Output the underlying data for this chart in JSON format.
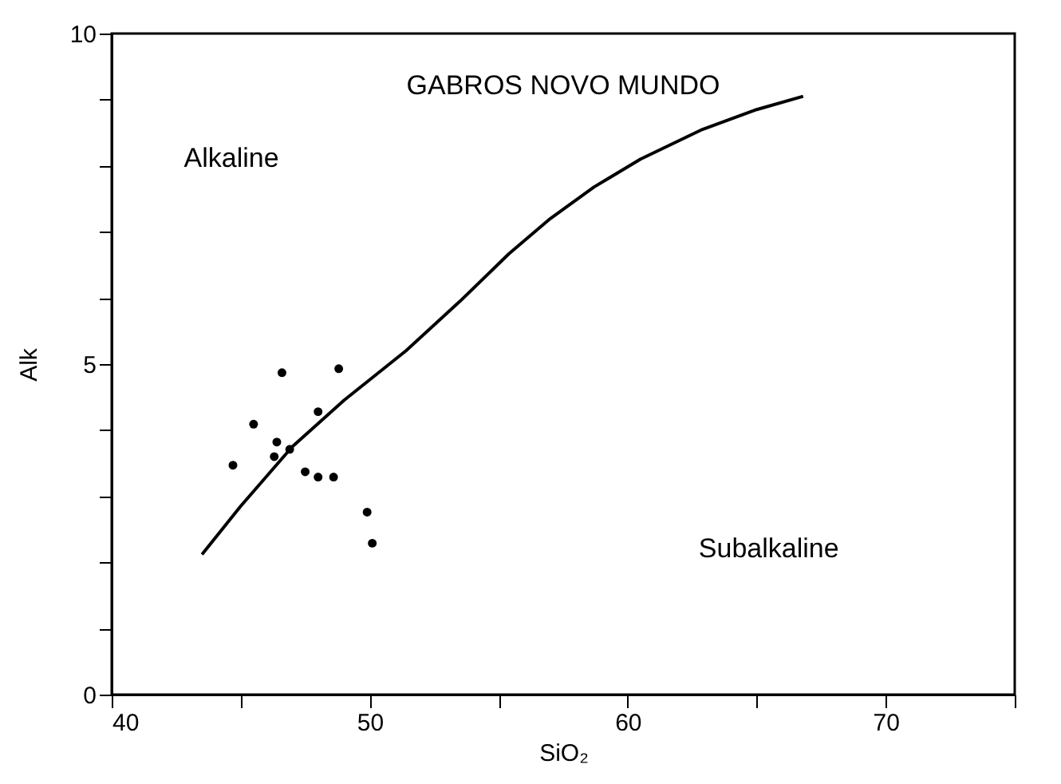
{
  "chart_data": {
    "type": "scatter",
    "xlabel": "SiO₂",
    "ylabel": "Alk",
    "xlim": [
      40,
      75
    ],
    "ylim": [
      0,
      10
    ],
    "xticks": [
      40,
      {
        "value": 45,
        "label": null
      },
      50,
      {
        "value": 55,
        "label": null
      },
      60,
      {
        "value": 65,
        "label": null
      },
      70,
      {
        "value": 75,
        "label": null
      }
    ],
    "yticks": [
      0,
      {
        "value": 1,
        "label": null
      },
      {
        "value": 2,
        "label": null
      },
      {
        "value": 3,
        "label": null
      },
      {
        "value": 4,
        "label": null
      },
      5,
      {
        "value": 6,
        "label": null
      },
      {
        "value": 7,
        "label": null
      },
      {
        "value": 8,
        "label": null
      },
      {
        "value": 9,
        "label": null
      },
      10
    ],
    "marker": "circle",
    "annotations": [
      "GABROS NOVO MUNDO",
      "Alkaline",
      "Subalkaline"
    ],
    "series": [
      {
        "color": "#000000",
        "x": [
          44.7,
          46.6,
          48.8,
          45.5,
          48.0,
          46.4,
          46.3,
          46.9,
          47.5,
          48.0,
          48.6,
          49.9,
          50.1
        ],
        "values": [
          3.47,
          4.87,
          4.93,
          4.09,
          4.28,
          3.82,
          3.6,
          3.71,
          3.37,
          3.29,
          3.29,
          2.76,
          2.29
        ]
      },
      {
        "type": "line",
        "color": "#000000",
        "line_style": "solid",
        "marker": "none",
        "x": [
          43.5,
          45,
          47,
          49,
          51.4,
          53.5,
          55.4,
          57,
          58.7,
          60.5,
          62.9,
          65,
          66.8
        ],
        "values": [
          2.12,
          2.85,
          3.75,
          4.45,
          5.2,
          5.95,
          6.67,
          7.2,
          7.68,
          8.1,
          8.55,
          8.85,
          9.05
        ]
      }
    ]
  }
}
